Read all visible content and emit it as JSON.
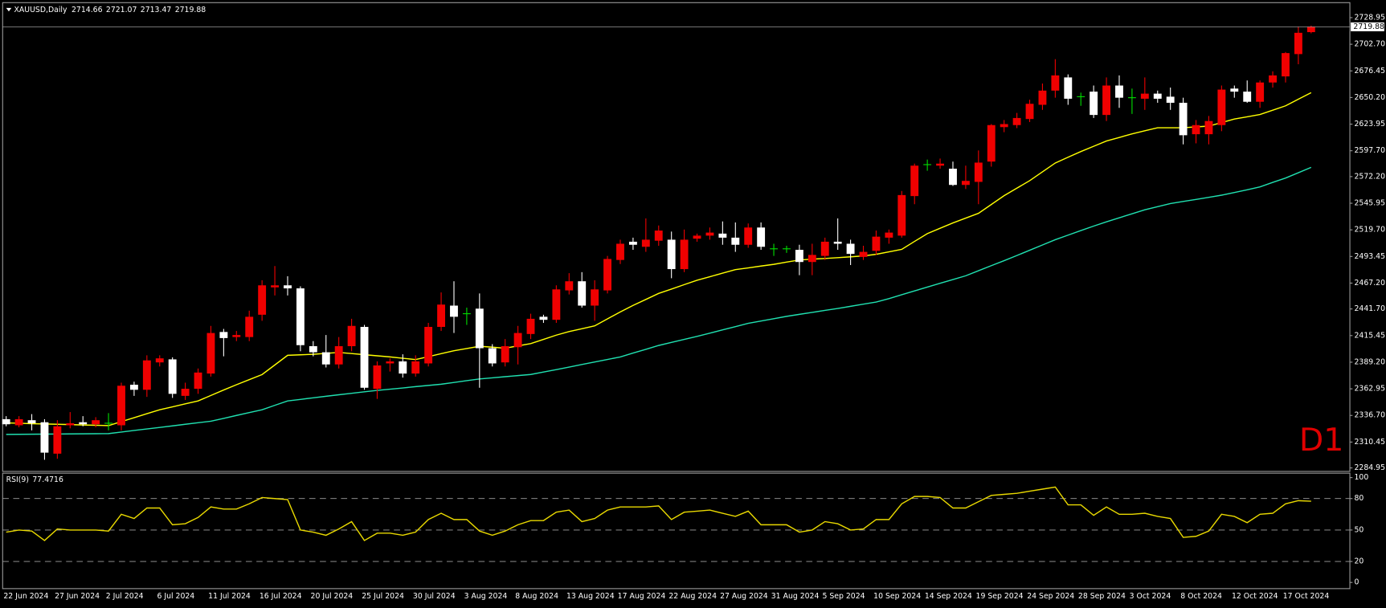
{
  "chart_data": {
    "type": "candlestick",
    "title": "XAUUSD,Daily",
    "timeframe_label": "D1",
    "categories": [
      "22 Jun 2024",
      null,
      null,
      null,
      "27 Jun 2024",
      null,
      null,
      null,
      "2 Jul 2024",
      null,
      null,
      null,
      "6 Jul 2024",
      null,
      null,
      null,
      "11 Jul 2024",
      null,
      null,
      null,
      "16 Jul 2024",
      null,
      null,
      null,
      "20 Jul 2024",
      null,
      null,
      null,
      "25 Jul 2024",
      null,
      null,
      null,
      "30 Jul 2024",
      null,
      null,
      null,
      "3 Aug 2024",
      null,
      null,
      null,
      "8 Aug 2024",
      null,
      null,
      null,
      "13 Aug 2024",
      null,
      null,
      null,
      "17 Aug 2024",
      null,
      null,
      null,
      "22 Aug 2024",
      null,
      null,
      null,
      "27 Aug 2024",
      null,
      null,
      null,
      "31 Aug 2024",
      null,
      null,
      null,
      "5 Sep 2024",
      null,
      null,
      null,
      "10 Sep 2024",
      null,
      null,
      null,
      "14 Sep 2024",
      null,
      null,
      null,
      "19 Sep 2024",
      null,
      null,
      null,
      "24 Sep 2024",
      null,
      null,
      null,
      "28 Sep 2024",
      null,
      null,
      null,
      "3 Oct 2024",
      null,
      null,
      null,
      "8 Oct 2024",
      null,
      null,
      null,
      "12 Oct 2024",
      null,
      null,
      null,
      "17 Oct 2024",
      null,
      null
    ],
    "open": [
      2333,
      2327,
      2332,
      2330,
      2299,
      2327,
      2330,
      2328,
      2329,
      2327,
      2367,
      2362,
      2389,
      2392,
      2356,
      2363,
      2378,
      2419,
      2414,
      2414,
      2436,
      2463,
      2465,
      2462,
      2405,
      2399,
      2387,
      2405,
      2424,
      2363,
      2388,
      2390,
      2378,
      2388,
      2424,
      2445,
      2437,
      2442,
      2403,
      2389,
      2404,
      2417,
      2434,
      2431,
      2460,
      2469,
      2445,
      2460,
      2490,
      2508,
      2503,
      2509,
      2510,
      2481,
      2511,
      2514,
      2516,
      2512,
      2505,
      2522,
      2501,
      2501,
      2500,
      2488,
      2494,
      2508,
      2506,
      2493,
      2499,
      2512,
      2514,
      2553,
      2584,
      2583,
      2580,
      2564,
      2567,
      2587,
      2621,
      2623,
      2629,
      2643,
      2657,
      2670,
      2651,
      2656,
      2633,
      2662,
      2650,
      2649,
      2654,
      2651,
      2645,
      2614,
      2614,
      2623,
      2659,
      2656,
      2646,
      2665,
      2671,
      2693,
      2714.66
    ],
    "high": [
      2336,
      2336,
      2338,
      2333,
      2332,
      2340,
      2336,
      2335,
      2339,
      2369,
      2370,
      2396,
      2396,
      2394,
      2369,
      2383,
      2425,
      2422,
      2420,
      2440,
      2470,
      2484,
      2474,
      2464,
      2410,
      2416,
      2414,
      2432,
      2426,
      2390,
      2393,
      2397,
      2396,
      2428,
      2458,
      2469,
      2443,
      2457,
      2407,
      2412,
      2425,
      2437,
      2436,
      2465,
      2477,
      2478,
      2470,
      2494,
      2510,
      2512,
      2531,
      2524,
      2518,
      2520,
      2516,
      2522,
      2528,
      2527,
      2526,
      2527,
      2506,
      2504,
      2505,
      2506,
      2512,
      2531,
      2510,
      2504,
      2519,
      2520,
      2558,
      2585,
      2589,
      2590,
      2587,
      2583,
      2598,
      2624,
      2628,
      2635,
      2648,
      2664,
      2688,
      2673,
      2655,
      2662,
      2670,
      2672,
      2659,
      2670,
      2657,
      2660,
      2650,
      2628,
      2632,
      2662,
      2662,
      2667,
      2667,
      2676,
      2695,
      2720,
      2721.07
    ],
    "low": [
      2326,
      2325,
      2322,
      2293,
      2294,
      2324,
      2326,
      2325,
      2322,
      2322,
      2356,
      2355,
      2385,
      2354,
      2352,
      2358,
      2375,
      2395,
      2410,
      2410,
      2430,
      2455,
      2455,
      2400,
      2395,
      2384,
      2383,
      2400,
      2362,
      2353,
      2380,
      2374,
      2375,
      2385,
      2420,
      2418,
      2426,
      2364,
      2385,
      2385,
      2387,
      2412,
      2428,
      2428,
      2456,
      2443,
      2430,
      2457,
      2486,
      2500,
      2498,
      2504,
      2472,
      2478,
      2508,
      2510,
      2505,
      2498,
      2502,
      2500,
      2494,
      2497,
      2475,
      2475,
      2490,
      2500,
      2485,
      2490,
      2495,
      2506,
      2512,
      2545,
      2578,
      2580,
      2563,
      2560,
      2545,
      2582,
      2616,
      2620,
      2626,
      2638,
      2650,
      2643,
      2642,
      2630,
      2627,
      2640,
      2634,
      2638,
      2645,
      2638,
      2604,
      2605,
      2604,
      2617,
      2650,
      2645,
      2640,
      2660,
      2665,
      2683,
      2713.47
    ],
    "close": [
      2328,
      2333,
      2329,
      2300,
      2326,
      2329,
      2328,
      2332,
      2329,
      2366,
      2362,
      2391,
      2393,
      2358,
      2363,
      2379,
      2418,
      2413,
      2416,
      2434,
      2465,
      2465,
      2462,
      2406,
      2399,
      2387,
      2405,
      2425,
      2364,
      2386,
      2390,
      2378,
      2390,
      2424,
      2446,
      2434,
      2437,
      2403,
      2388,
      2405,
      2418,
      2432,
      2431,
      2461,
      2469,
      2445,
      2461,
      2491,
      2506,
      2505,
      2510,
      2519,
      2481,
      2510,
      2514,
      2517,
      2512,
      2505,
      2522,
      2503,
      2501,
      2501,
      2488,
      2495,
      2508,
      2506,
      2496,
      2498,
      2513,
      2517,
      2554,
      2583,
      2584,
      2585,
      2564,
      2568,
      2586,
      2623,
      2624,
      2630,
      2644,
      2657,
      2672,
      2649,
      2651,
      2633,
      2662,
      2650,
      2650,
      2654,
      2649,
      2645,
      2613,
      2623,
      2627,
      2658,
      2656,
      2646,
      2665,
      2672,
      2694,
      2714,
      2719.88
    ],
    "colors": {
      "up": "#f00000",
      "down": "#ffffff",
      "doji": "#00e000"
    },
    "overlays": [
      {
        "color": "#ffff00",
        "values": [
          2329.3,
          2329,
          2328.6,
          2328.3,
          2328,
          2327.7,
          2327.3,
          2327,
          2326.7,
          2330.6,
          2334.5,
          2338.4,
          2342.3,
          2345.2,
          2348.1,
          2351,
          2356.4,
          2361.8,
          2367,
          2372,
          2377,
          2386.5,
          2396,
          2396.5,
          2397,
          2397.9,
          2398.8,
          2397.7,
          2396.6,
          2395.5,
          2394.4,
          2393.1,
          2391.8,
          2394.7,
          2397.6,
          2400.5,
          2402.7,
          2404.9,
          2404,
          2403,
          2405.3,
          2407.5,
          2411.7,
          2415.9,
          2419.4,
          2422.2,
          2425,
          2431.9,
          2438.8,
          2445.2,
          2451.1,
          2457,
          2461.3,
          2465.7,
          2470,
          2473.5,
          2477,
          2480.5,
          2482.2,
          2484,
          2485.7,
          2487.9,
          2490,
          2490.8,
          2491.5,
          2492.3,
          2493.1,
          2494,
          2495.6,
          2498,
          2500.5,
          2508.3,
          2516,
          2521.3,
          2526.5,
          2531.3,
          2536,
          2544.7,
          2553.4,
          2560.8,
          2568.2,
          2576.9,
          2585.6,
          2591.3,
          2596.9,
          2602.1,
          2607.3,
          2610.8,
          2614.3,
          2617.4,
          2620.4,
          2620.4,
          2620.4,
          2621.2,
          2622,
          2625.5,
          2629,
          2631.2,
          2633.4,
          2637.7,
          2642,
          2648.5,
          2655
        ]
      },
      {
        "color": "#20e0b0",
        "values": [
          2318,
          2318.1,
          2318.2,
          2318.3,
          2318.4,
          2318.5,
          2318.6,
          2318.7,
          2318.8,
          2320.3,
          2321.9,
          2323.4,
          2324.9,
          2326.4,
          2328,
          2329.5,
          2331,
          2333.8,
          2336.7,
          2339.5,
          2342.3,
          2346.7,
          2351,
          2352.5,
          2354.1,
          2355.6,
          2357.1,
          2358.5,
          2360,
          2361.4,
          2362.6,
          2363.8,
          2365.1,
          2366.3,
          2367.5,
          2369.2,
          2371,
          2372.7,
          2373.8,
          2374.9,
          2376,
          2377.1,
          2379.5,
          2381.9,
          2384.4,
          2386.9,
          2389.4,
          2391.9,
          2394.4,
          2398.2,
          2401.9,
          2405.7,
          2408.7,
          2411.7,
          2414.7,
          2417.8,
          2421.1,
          2424.3,
          2427.5,
          2429.8,
          2432.1,
          2434.4,
          2436.4,
          2438.3,
          2440.3,
          2442.2,
          2444.3,
          2446.4,
          2448.5,
          2451.9,
          2455.7,
          2459.5,
          2463.3,
          2467,
          2470.7,
          2474.4,
          2479.4,
          2484.4,
          2489.3,
          2494.4,
          2499.6,
          2504.8,
          2510,
          2514.5,
          2519,
          2523.4,
          2527.6,
          2531.6,
          2535.5,
          2539.5,
          2542.6,
          2545.6,
          2547.7,
          2549.7,
          2551.8,
          2553.9,
          2556.5,
          2559.2,
          2562.1,
          2566.5,
          2570.8,
          2576,
          2581.3
        ]
      }
    ],
    "ylim": [
      2281.5,
      2742
    ],
    "yticks": [
      2728.95,
      {
        "value": 2702.7,
        "label": "2702.70"
      },
      2676.45,
      {
        "value": 2650.2,
        "label": "2650.20"
      },
      2623.95,
      {
        "value": 2597.7,
        "label": "2597.70"
      },
      {
        "value": 2572.2,
        "label": "2572.20"
      },
      2545.95,
      {
        "value": 2519.7,
        "label": "2519.70"
      },
      2493.45,
      {
        "value": 2467.2,
        "label": "2467.20"
      },
      {
        "value": 2441.7,
        "label": "2441.70"
      },
      2415.45,
      {
        "value": 2389.2,
        "label": "2389.20"
      },
      2362.95,
      {
        "value": 2336.7,
        "label": "2336.70"
      },
      2310.45,
      2284.95
    ],
    "grid": false,
    "indicator": {
      "type": "line",
      "name": "RSI(9)",
      "color": "#e8d800",
      "values": [
        48,
        50,
        49,
        40,
        51,
        50,
        50,
        50,
        49,
        65,
        61,
        71,
        71,
        55,
        56,
        62,
        72,
        70,
        70,
        75,
        81,
        80,
        79,
        50,
        48,
        45,
        51,
        58,
        40,
        47,
        47,
        45,
        48,
        60,
        66,
        60,
        60,
        49,
        45,
        49,
        55,
        59,
        59,
        67,
        69,
        58,
        61,
        69,
        72,
        72,
        72,
        73,
        60,
        67,
        68,
        69,
        66,
        63,
        68,
        55,
        55,
        55,
        48,
        50,
        58,
        56,
        50,
        51,
        60,
        60,
        75,
        82,
        82,
        81,
        71,
        71,
        77,
        83,
        84,
        85,
        87,
        89,
        91,
        74,
        74,
        64,
        72,
        65,
        65,
        66,
        63,
        61,
        43,
        44,
        49,
        65,
        63,
        57,
        65,
        66,
        75,
        78,
        77.4716
      ],
      "ylim": [
        0,
        100
      ],
      "yticks": [
        100,
        80,
        50,
        20,
        0
      ],
      "levels": [
        80,
        50,
        20
      ]
    }
  }
}
